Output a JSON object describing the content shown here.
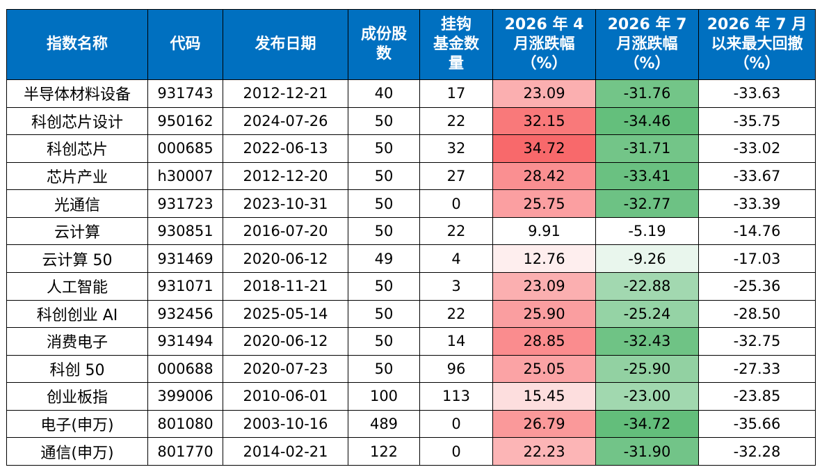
{
  "table": {
    "headers": [
      "指数名称",
      "代码",
      "发布日期",
      "成份股\n数",
      "挂钩\n基金数\n量",
      "2026 年 4\n月涨跌幅\n（%）",
      "2026 年 7\n月涨跌幅\n（%）",
      "2026 年 7 月\n以来最大回撤\n（%）"
    ],
    "rows": [
      [
        "半导体材料设备",
        "931743",
        "2012-12-21",
        "40",
        "17",
        "23.09",
        "-31.76",
        "-33.63"
      ],
      [
        "科创芯片设计",
        "950162",
        "2024-07-26",
        "50",
        "22",
        "32.15",
        "-34.46",
        "-35.75"
      ],
      [
        "科创芯片",
        "000685",
        "2022-06-13",
        "50",
        "32",
        "34.72",
        "-31.71",
        "-33.02"
      ],
      [
        "芯片产业",
        "h30007",
        "2012-12-20",
        "50",
        "27",
        "28.42",
        "-33.41",
        "-33.67"
      ],
      [
        "光通信",
        "931723",
        "2023-10-31",
        "50",
        "0",
        "25.75",
        "-32.77",
        "-33.39"
      ],
      [
        "云计算",
        "930851",
        "2016-07-20",
        "50",
        "22",
        "9.91",
        "-5.19",
        "-14.76"
      ],
      [
        "云计算 50",
        "931469",
        "2020-06-12",
        "49",
        "4",
        "12.76",
        "-9.26",
        "-17.03"
      ],
      [
        "人工智能",
        "931071",
        "2018-11-21",
        "50",
        "3",
        "23.09",
        "-22.88",
        "-25.36"
      ],
      [
        "科创创业 AI",
        "932456",
        "2025-05-14",
        "50",
        "22",
        "25.90",
        "-25.24",
        "-28.50"
      ],
      [
        "消费电子",
        "931494",
        "2020-06-12",
        "50",
        "14",
        "28.85",
        "-32.43",
        "-32.75"
      ],
      [
        "科创 50",
        "000688",
        "2020-07-23",
        "50",
        "96",
        "25.05",
        "-25.90",
        "-27.33"
      ],
      [
        "创业板指",
        "399006",
        "2010-06-01",
        "100",
        "113",
        "15.45",
        "-23.00",
        "-23.85"
      ],
      [
        "电子(申万)",
        "801080",
        "2003-10-16",
        "489",
        "0",
        "26.79",
        "-34.72",
        "-35.66"
      ],
      [
        "通信(申万)",
        "801770",
        "2014-02-21",
        "122",
        "0",
        "22.23",
        "-31.90",
        "-32.28"
      ]
    ]
  },
  "colors": {
    "header_bg": "#0070C0",
    "header_text": "#FFFFFF",
    "positive_scale": [
      "#FFFFFF",
      "#F8696B"
    ],
    "negative_scale": [
      "#FFFFFF",
      "#63BE7B"
    ]
  }
}
